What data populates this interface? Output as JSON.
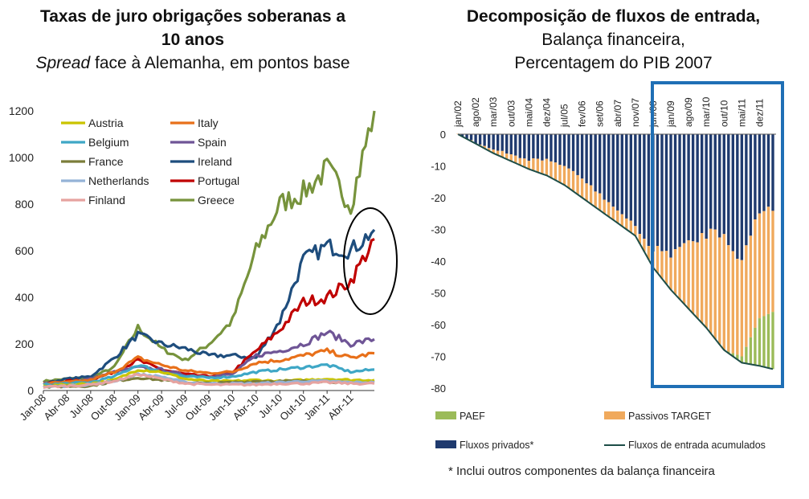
{
  "left": {
    "title_line1": "Taxas de juro obrigações soberanas a",
    "title_line2": "10 anos",
    "subtitle_italic": "Spread",
    "subtitle_rest": " face à Alemanha, em pontos base"
  },
  "right": {
    "title_bold": "Decomposição de fluxos de entrada,",
    "title_line2": "Balança financeira,",
    "title_line3": "Percentagem do PIB 2007"
  },
  "footnote": "* Inclui outros componentes da balança financeira",
  "chart_data": [
    {
      "type": "line",
      "title": "Taxas de juro obrigações soberanas a 10 anos",
      "subtitle": "Spread face à Alemanha, em pontos base",
      "ylim": [
        0,
        1200
      ],
      "yticks": [
        "0",
        "200",
        "400",
        "600",
        "800",
        "1000",
        "1200"
      ],
      "x_tick_labels": [
        "Jan-08",
        "Abr-08",
        "Jul-08",
        "Out-08",
        "Jan-09",
        "Abr-09",
        "Jul-09",
        "Out-09",
        "Jan-10",
        "Abr-10",
        "Jul-10",
        "Out-10",
        "Jan-11",
        "Abr-11"
      ],
      "x_months": [
        "2008-01",
        "2008-04",
        "2008-07",
        "2008-10",
        "2009-01",
        "2009-04",
        "2009-07",
        "2009-10",
        "2010-01",
        "2010-04",
        "2010-07",
        "2010-10",
        "2011-01",
        "2011-04",
        "2011-06"
      ],
      "legend_position": "top-left",
      "series": [
        {
          "name": "Austria",
          "color": "#c9c400",
          "values": [
            20,
            25,
            30,
            45,
            90,
            80,
            50,
            40,
            40,
            45,
            40,
            45,
            50,
            45,
            45
          ]
        },
        {
          "name": "Italy",
          "color": "#e8701a",
          "values": [
            30,
            35,
            45,
            80,
            140,
            110,
            85,
            75,
            80,
            120,
            130,
            150,
            170,
            140,
            160
          ]
        },
        {
          "name": "Belgium",
          "color": "#3fa7c6",
          "values": [
            25,
            30,
            35,
            60,
            110,
            80,
            60,
            55,
            60,
            80,
            90,
            100,
            110,
            80,
            90
          ]
        },
        {
          "name": "Spain",
          "color": "#6f5596",
          "values": [
            30,
            35,
            50,
            80,
            100,
            90,
            65,
            60,
            70,
            150,
            170,
            200,
            250,
            200,
            220
          ]
        },
        {
          "name": "France",
          "color": "#7b7d3a",
          "values": [
            15,
            18,
            20,
            40,
            55,
            45,
            35,
            30,
            35,
            40,
            40,
            40,
            40,
            30,
            35
          ]
        },
        {
          "name": "Ireland",
          "color": "#1e4d7d",
          "values": [
            30,
            50,
            60,
            140,
            240,
            200,
            180,
            150,
            150,
            140,
            300,
            560,
            620,
            600,
            690
          ]
        },
        {
          "name": "Netherlands",
          "color": "#95b3d7",
          "values": [
            15,
            20,
            25,
            40,
            70,
            60,
            35,
            30,
            30,
            30,
            35,
            40,
            40,
            35,
            35
          ]
        },
        {
          "name": "Portugal",
          "color": "#c00000",
          "values": [
            30,
            40,
            45,
            80,
            130,
            90,
            70,
            60,
            80,
            170,
            260,
            380,
            400,
            470,
            650
          ]
        },
        {
          "name": "Finland",
          "color": "#e6a3a0",
          "values": [
            15,
            20,
            25,
            40,
            70,
            50,
            30,
            25,
            25,
            25,
            30,
            30,
            35,
            30,
            30
          ]
        },
        {
          "name": "Greece",
          "color": "#77933c",
          "values": [
            40,
            50,
            55,
            100,
            270,
            180,
            130,
            200,
            300,
            600,
            800,
            850,
            950,
            800,
            1200
          ]
        }
      ]
    },
    {
      "type": "area",
      "title": "Decomposição de fluxos de entrada, Balança financeira, Percentagem do PIB 2007",
      "ylim": [
        -80,
        0
      ],
      "yticks": [
        "0",
        "-10",
        "-20",
        "-30",
        "-40",
        "-50",
        "-60",
        "-70",
        "-80"
      ],
      "x_tick_labels": [
        "jan/02",
        "ago/02",
        "mar/03",
        "out/03",
        "mai/04",
        "dez/04",
        "jul/05",
        "fev/06",
        "set/06",
        "abr/07",
        "nov/07",
        "jun/08",
        "jan/09",
        "ago/09",
        "mar/10",
        "out/10",
        "mai/11",
        "dez/11"
      ],
      "x_index": [
        0,
        4,
        8,
        12,
        16,
        20,
        24,
        28,
        32,
        36,
        40,
        44,
        48,
        52,
        56,
        60,
        64,
        68,
        71
      ],
      "series": [
        {
          "name": "PAEF",
          "color": "#9bbb59",
          "values": [
            0,
            0,
            0,
            0,
            0,
            0,
            0,
            0,
            0,
            0,
            0,
            0,
            0,
            0,
            0,
            0,
            -2,
            -15,
            -18
          ]
        },
        {
          "name": "Passivos TARGET",
          "color": "#f0a95c",
          "values": [
            0,
            -0.5,
            -1,
            -2,
            -3,
            -5,
            -6,
            -6,
            -5,
            -4,
            -3,
            -5,
            -12,
            -20,
            -30,
            -37,
            -30,
            -34,
            -33
          ]
        },
        {
          "name": "Fluxos privados*",
          "color": "#1f3a6e",
          "values": [
            0,
            -2.5,
            -5,
            -6.5,
            -8,
            -8,
            -10,
            -14,
            -19,
            -24,
            -29,
            -37,
            -37,
            -35,
            -31,
            -31,
            -42,
            -24,
            -23
          ]
        },
        {
          "name": "Fluxos de entrada acumulados",
          "color": "#1d4d47",
          "values": [
            0,
            -3,
            -6,
            -8.5,
            -11,
            -13,
            -16,
            -20,
            -24,
            -28,
            -32,
            -42,
            -49,
            -55,
            -61,
            -68,
            -72,
            -73,
            -74
          ]
        }
      ],
      "legend_position": "bottom",
      "highlight_box": {
        "from": "jun/08",
        "to": "dez/11",
        "color": "#1f6fb5"
      }
    }
  ]
}
